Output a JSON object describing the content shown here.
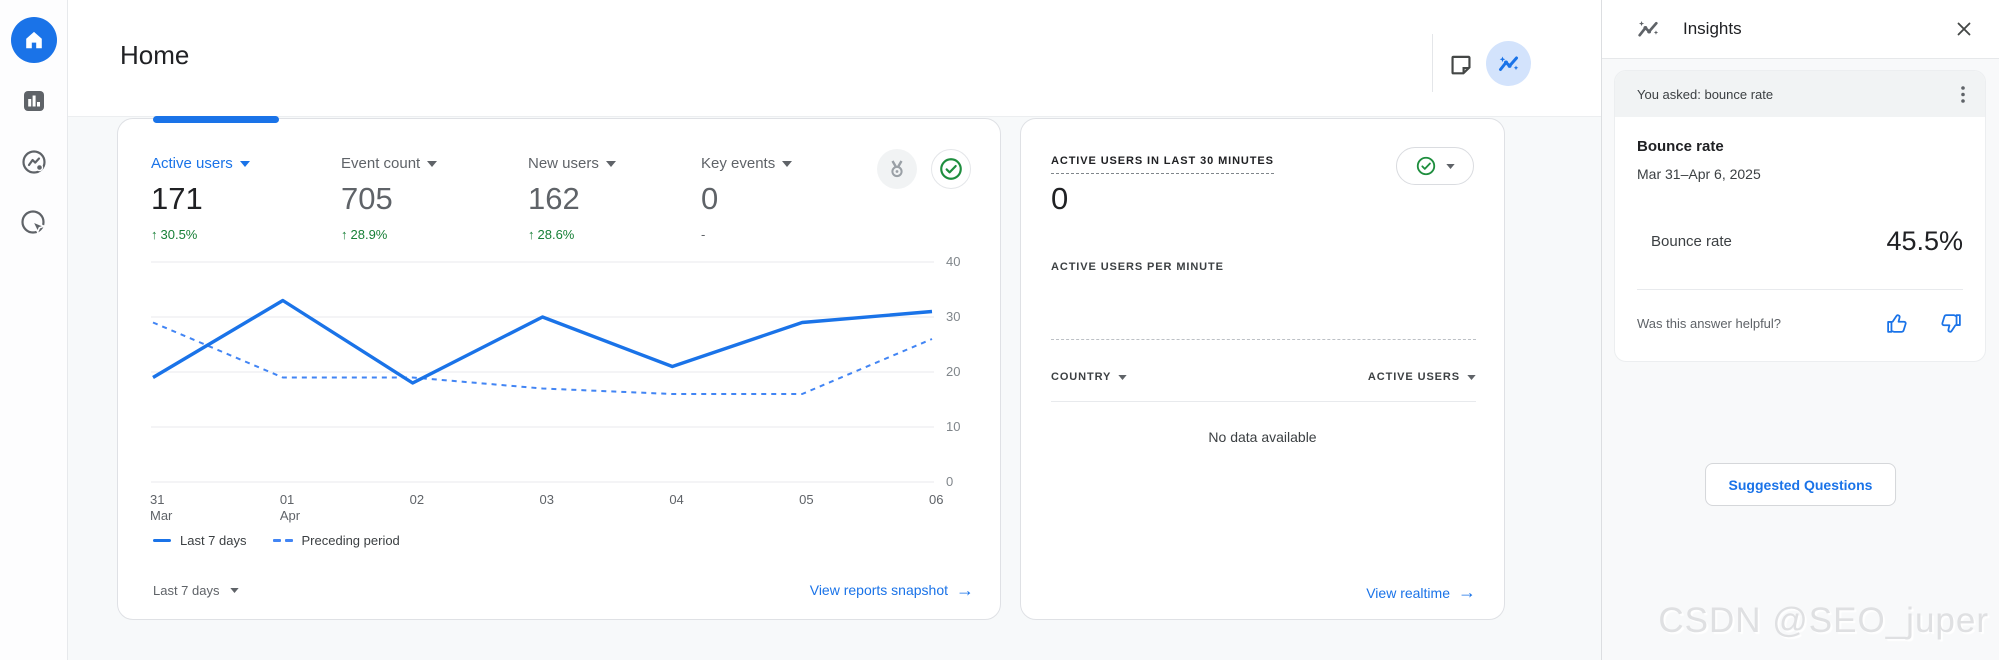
{
  "colors": {
    "accent_blue": "#1a73e8",
    "positive_green": "#188038",
    "check_green": "#1e8e3e",
    "text_dark": "#202124",
    "text_gray": "#5f6368",
    "panel_bg": "#f8f9fa",
    "active_icon_bg": "#d3e3fc"
  },
  "sidebar": {
    "items": [
      {
        "name": "home"
      },
      {
        "name": "reports"
      },
      {
        "name": "explore"
      },
      {
        "name": "advertising"
      }
    ]
  },
  "header": {
    "title": "Home"
  },
  "overview_card": {
    "metrics": [
      {
        "label": "Active users",
        "value": "171",
        "delta": "30.5%",
        "selected": true
      },
      {
        "label": "Event count",
        "value": "705",
        "delta": "28.9%",
        "selected": false
      },
      {
        "label": "New users",
        "value": "162",
        "delta": "28.6%",
        "selected": false
      },
      {
        "label": "Key events",
        "value": "0",
        "delta": "-",
        "selected": false
      }
    ],
    "range_label": "Last 7 days",
    "link_label": "View reports snapshot"
  },
  "chart_data": {
    "type": "line",
    "categories": [
      "31 Mar",
      "01 Apr",
      "02",
      "03",
      "04",
      "05",
      "06"
    ],
    "tick_lines": [
      [
        "31",
        "Mar"
      ],
      [
        "01",
        "Apr"
      ],
      [
        "02"
      ],
      [
        "03"
      ],
      [
        "04"
      ],
      [
        "05"
      ],
      [
        "06"
      ]
    ],
    "series": [
      {
        "name": "Last 7 days",
        "style": "solid",
        "values": [
          19,
          33,
          18,
          30,
          21,
          29,
          31
        ]
      },
      {
        "name": "Preceding period",
        "style": "dashed",
        "values": [
          29,
          19,
          19,
          17,
          16,
          16,
          26
        ]
      }
    ],
    "ylim": [
      0,
      40
    ],
    "yticks": [
      0,
      10,
      20,
      30,
      40
    ],
    "grid": true,
    "legend_position": "bottom",
    "title": "",
    "xlabel": "",
    "ylabel": ""
  },
  "realtime_card": {
    "title": "ACTIVE USERS IN LAST 30 MINUTES",
    "value": "0",
    "per_minute_label": "ACTIVE USERS PER MINUTE",
    "table": {
      "columns": [
        "COUNTRY",
        "ACTIVE USERS"
      ],
      "empty_text": "No data available"
    },
    "link_label": "View realtime"
  },
  "insights": {
    "title": "Insights",
    "question": "You asked: bounce rate",
    "answer_title": "Bounce rate",
    "date_range": "Mar 31–Apr 6, 2025",
    "metric_label": "Bounce rate",
    "metric_value": "45.5%",
    "feedback_text": "Was this answer helpful?",
    "suggested_button": "Suggested Questions"
  },
  "watermark": {
    "text": "CSDN @SEO_juper"
  }
}
